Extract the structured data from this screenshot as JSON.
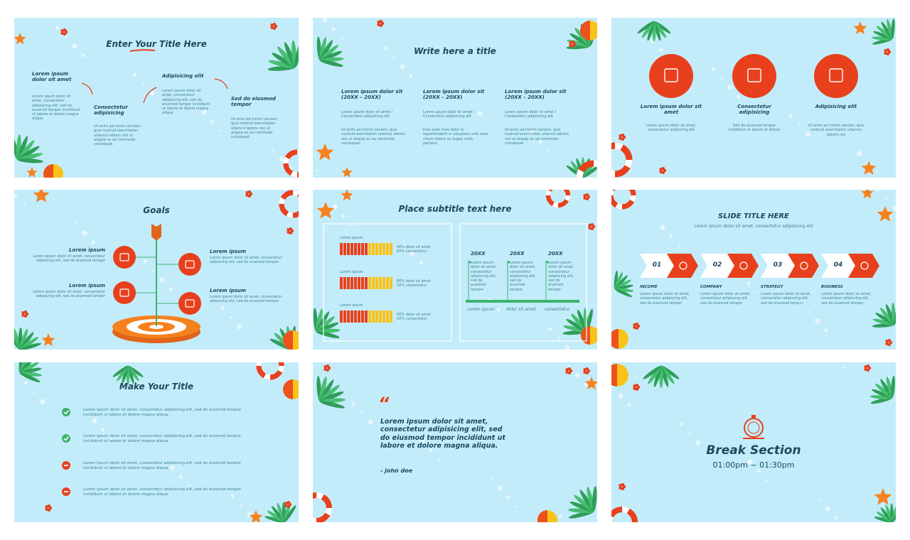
{
  "slides": [
    {
      "title": "Enter Your Title Here",
      "items": [
        {
          "heading": "Lorem ipsum dolor sit amet",
          "text": "Lorem ipsum dolor sit amet, consectetur adipisicing elit, sed do eiusmod tempor incididunt ut labore et dolore magna aliqua."
        },
        {
          "heading": "Consectetur adipisicing",
          "text": "Ut enim ad minim veniam, quis nostrud exercitation ullamco laboris nisi ut aliquip ex ea commodo consequat."
        },
        {
          "heading": "Adipisicing elit",
          "text": "Lorem ipsum dolor sit amet, consectetur adipisicing elit, sed do eiusmod tempor incididunt ut labore et dolore magna aliqua."
        },
        {
          "heading": "Sed do eiusmod tempor",
          "text": "Ut enim ad minim veniam, quis nostrud exercitation ullamco laboris nisi ut aliquip ex ea commodo consequat."
        }
      ]
    },
    {
      "title": "Write here a title",
      "columns": [
        {
          "heading": "Lorem ipsum dolor sit (20XX – 20XX)",
          "lines": [
            "Lorem ipsum dolor sit amet / Consectetur adipisicing elit",
            "Ut enim ad minim veniam, quis nostrud exercitation ullamco laboris nisi ut aliquip ex ea commodo consequat."
          ]
        },
        {
          "heading": "Lorem ipsum dolor sit (20XX – 20XX)",
          "lines": [
            "Lorem ipsum dolor sit amet / Consectetur adipisicing elit",
            "Duis aute irure dolor in reprehenderit in voluptate velit esse cillum dolore eu fugiat nulla pariatur."
          ]
        },
        {
          "heading": "Lorem ipsum dolor sit (20XX – 20XX)",
          "lines": [
            "Lorem ipsum dolor sit amet / Consectetur adipisicing elit",
            "Ut enim ad minim veniam, quis nostrud exercitation ullamco laboris nisi ut aliquip ex ea commodo consequat."
          ]
        }
      ]
    },
    {
      "items": [
        {
          "heading": "Lorem ipsum dolor sit amet",
          "text": "Lorem ipsum dolor sit amet, consectetur adipiscing elit"
        },
        {
          "heading": "Consectetur adipisicing",
          "text": "Sed do eiusmod tempor incididunt ut labore et dolore"
        },
        {
          "heading": "Adipisicing elit",
          "text": "Ut enim ad minim veniam, quis nostrud exercitation ullamco laboris nisi"
        }
      ]
    },
    {
      "title": "Goals",
      "items": [
        {
          "heading": "Lorem ipsum",
          "text": "Lorem ipsum dolor sit amet, consectetur adipiscing elit, sed do eiusmod tempor"
        },
        {
          "heading": "Lorem ipsum",
          "text": "Lorem ipsum dolor sit amet, consectetur adipiscing elit, sed do eiusmod tempor"
        },
        {
          "heading": "Lorem ipsum",
          "text": "Lorem ipsum dolor sit amet, consectetur adipiscing elit, sed do eiusmod tempor"
        },
        {
          "heading": "Lorem ipsum",
          "text": "Lorem ipsum dolor sit amet, consectetur adipiscing elit, sed do eiusmod tempor"
        }
      ]
    },
    {
      "title": "Place subtitle text here",
      "bars": [
        {
          "label": "Lorem ipsum",
          "legend": [
            "40% dolor sit amet",
            "60% consectetur"
          ]
        },
        {
          "label": "Lorem ipsum",
          "legend": [
            "80% dolor sit amet",
            "20% consectetur"
          ]
        },
        {
          "label": "Lorem ipsum",
          "legend": [
            "50% dolor sit amet",
            "50% consectetur"
          ]
        }
      ],
      "timeline": [
        {
          "year": "20XX",
          "text": "Lorem ipsum dolor sit amet, consectetur adipiscing elit, sed do eiusmod tempor",
          "label": "Lorem ipsum"
        },
        {
          "year": "20XX",
          "text": "Lorem ipsum dolor sit amet, consectetur adipiscing elit, sed do eiusmod tempor",
          "label": "dolor sit amet"
        },
        {
          "year": "20XX",
          "text": "Lorem ipsum dolor sit amet, consectetur adipiscing elit, sed do eiusmod tempor",
          "label": "consectetur"
        }
      ]
    },
    {
      "title": "SLIDE TITLE HERE",
      "subtitle": "Lorem ipsum dolor sit amet, consectetur adipisicing elit",
      "steps": [
        {
          "number": "01",
          "label": "INCOME",
          "text": "Lorem ipsum dolor sit amet, consectetur adipiscing elit, sed do eiusmod tempor"
        },
        {
          "number": "02",
          "label": "COMPANY",
          "text": "Lorem ipsum dolor sit amet, consectetur adipiscing elit, sed do eiusmod tempor"
        },
        {
          "number": "03",
          "label": "STRATEGY",
          "text": "Lorem ipsum dolor sit amet, consectetur adipiscing elit, sed do eiusmod tempor"
        },
        {
          "number": "04",
          "label": "BUSINESS",
          "text": "Lorem ipsum dolor sit amet, consectetur adipiscing elit, sed do eiusmod tempor"
        }
      ]
    },
    {
      "title": "Make Your Title",
      "rows": [
        "Lorem ipsum dolor sit amet, consectetur adipisicing elit, sed do eiusmod tempor incididunt ut labore et dolore magna aliqua.",
        "Lorem ipsum dolor sit amet, consectetur adipisicing elit, sed do eiusmod tempor incididunt ut labore et dolore magna aliqua.",
        "Lorem ipsum dolor sit amet, consectetur adipisicing elit, sed do eiusmod tempor incididunt ut labore et dolore magna aliqua.",
        "Lorem ipsum dolor sit amet, consectetur adipisicing elit, sed do eiusmod tempor incididunt ut labore et dolore magna aliqua."
      ]
    },
    {
      "quote_mark": "“",
      "quote": "Lorem ipsum dolor sit amet, consectetur adipisicing elit, sed do eiusmod tempor incididunt ut labore et dolore magna aliqua.",
      "author": "- john doe"
    },
    {
      "title": "Break Section",
      "time": "01:00pm ~ 01:30pm"
    }
  ]
}
